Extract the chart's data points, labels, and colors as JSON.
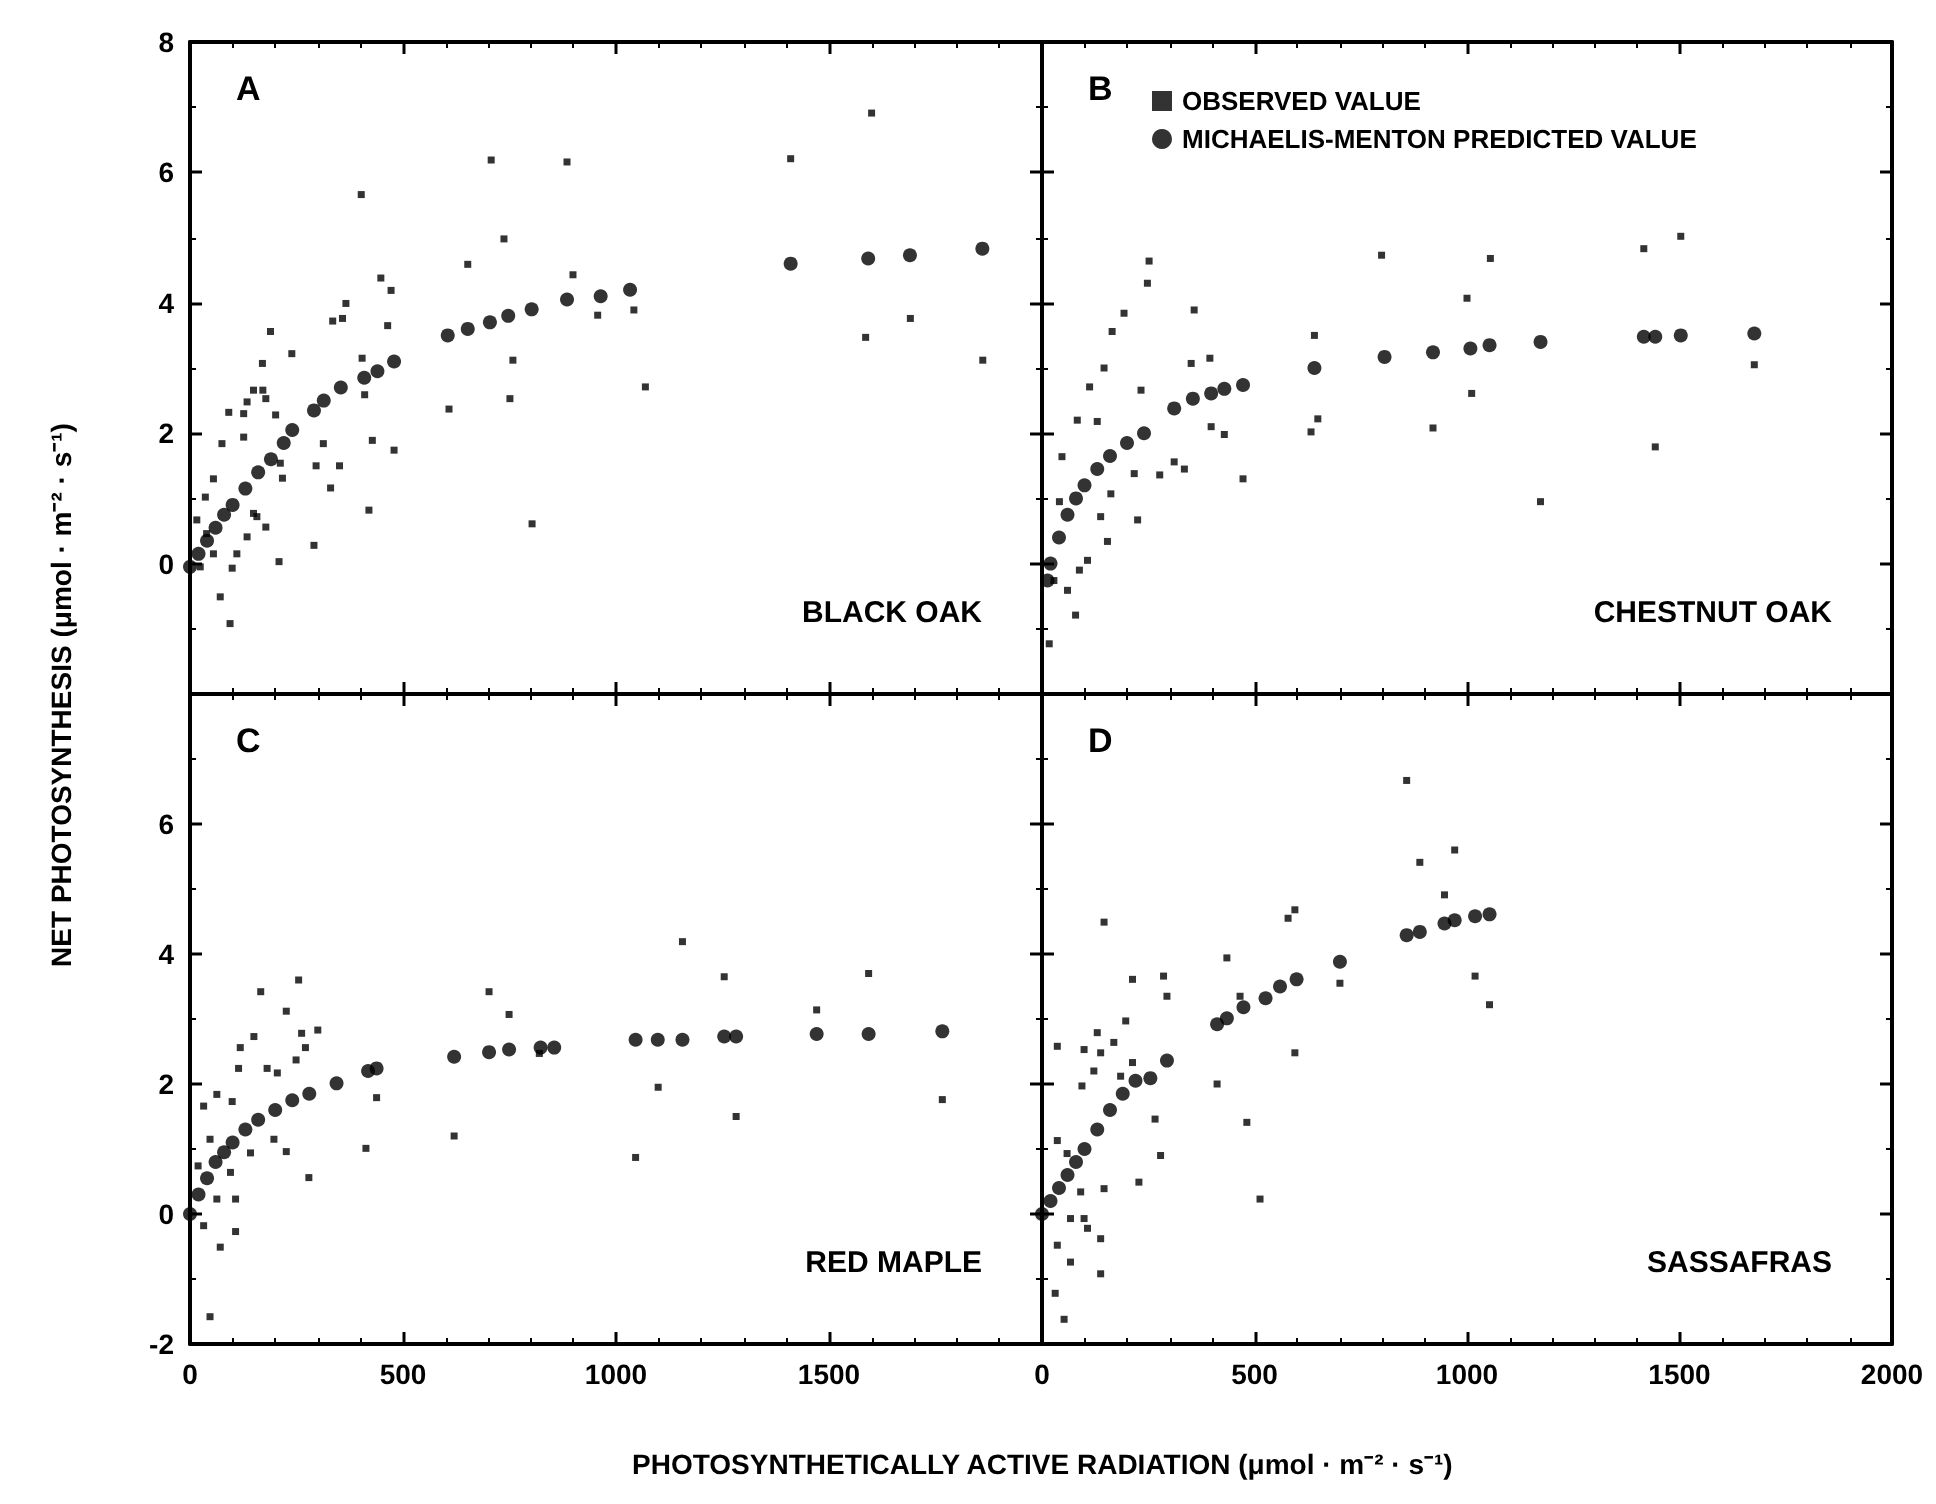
{
  "chart_data": [
    {
      "type": "scatter",
      "title": "A",
      "ylabel": "NET PHOTOSYNTHESIS (μmol · m⁻² · s⁻¹)",
      "annotations": [
        "BLACK OAK"
      ],
      "xlim": [
        0,
        2000
      ],
      "ylim": [
        -2,
        8
      ],
      "xticks": [
        0,
        500,
        1000,
        1500,
        2000
      ],
      "yticks": [
        {
          "value": -2,
          "label": null
        },
        0,
        2,
        4,
        6,
        8
      ],
      "tick_labels": "y",
      "legend": false,
      "grid": false,
      "series": [
        {
          "type": "scatter",
          "marker": "square",
          "color": "#000000",
          "x": [
            707,
            885,
            1410,
            1600,
            402,
            737,
            652,
            899,
            448,
            472,
            366,
            335,
            358,
            464,
            957,
            1042,
            1586,
            1691,
            1861,
            758,
            751,
            608,
            1069,
            404,
            410,
            428,
            479,
            313,
            296,
            351,
            330,
            420,
            291,
            803,
            189,
            239,
            170,
            149,
            171,
            178,
            134,
            91,
            126,
            201,
            126,
            75,
            212,
            217,
            55,
            36,
            149,
            178,
            134,
            209,
            99,
            71,
            94,
            24,
            55,
            110,
            39,
            16,
            157
          ],
          "values": [
            6.19,
            6.16,
            6.21,
            6.91,
            5.66,
            4.98,
            4.59,
            4.43,
            4.38,
            4.19,
            3.99,
            3.72,
            3.76,
            3.65,
            3.81,
            3.89,
            3.47,
            3.76,
            3.12,
            3.12,
            2.53,
            2.37,
            2.71,
            3.15,
            2.59,
            1.89,
            1.74,
            1.84,
            1.5,
            1.5,
            1.16,
            0.82,
            0.28,
            0.61,
            3.56,
            3.22,
            3.07,
            2.66,
            2.66,
            2.53,
            2.48,
            2.32,
            2.3,
            2.28,
            1.94,
            1.84,
            1.54,
            1.31,
            1.3,
            1.02,
            0.77,
            0.56,
            0.41,
            0.03,
            -0.07,
            -0.51,
            -0.92,
            -0.05,
            0.15,
            0.15,
            0.46,
            0.67,
            0.72
          ]
        },
        {
          "type": "scatter",
          "marker": "circle",
          "color": "#000000",
          "x": [
            0,
            20,
            40,
            60,
            80,
            100,
            130,
            160,
            190,
            220,
            240,
            291,
            314,
            354,
            409,
            440,
            479,
            605,
            652,
            704,
            747,
            802,
            885,
            964,
            1033,
            1410,
            1592,
            1690,
            1860
          ],
          "values": [
            -0.05,
            0.15,
            0.35,
            0.55,
            0.75,
            0.9,
            1.15,
            1.4,
            1.6,
            1.85,
            2.05,
            2.35,
            2.5,
            2.7,
            2.85,
            2.95,
            3.1,
            3.5,
            3.6,
            3.7,
            3.8,
            3.9,
            4.05,
            4.1,
            4.2,
            4.6,
            4.68,
            4.73,
            4.83
          ]
        }
      ]
    },
    {
      "type": "scatter",
      "title": "B",
      "annotations": [
        "CHESTNUT OAK"
      ],
      "xlim": [
        0,
        2000
      ],
      "ylim": [
        -2,
        8
      ],
      "xticks": [
        0,
        500,
        1000,
        1500,
        2000
      ],
      "yticks": [
        -2,
        0,
        2,
        4,
        6,
        8
      ],
      "tick_labels": false,
      "legend": "top left",
      "grid": false,
      "series": [
        {
          "type": "scatter",
          "name": "OBSERVED VALUE",
          "marker": "square",
          "color": "#000000",
          "x": [
            799,
            1055,
            1416,
            1503,
            252,
            248,
            358,
            193,
            165,
            146,
            112,
            233,
            351,
            395,
            641,
            1000,
            1011,
            649,
            633,
            920,
            1676,
            1443,
            1173,
            398,
            429,
            473,
            311,
            335,
            277,
            217,
            225,
            162,
            138,
            154,
            83,
            130,
            47,
            41,
            79,
            17,
            60,
            28,
            107,
            88
          ],
          "values": [
            4.73,
            4.68,
            4.83,
            5.02,
            4.64,
            4.3,
            3.89,
            3.84,
            3.56,
            3.0,
            2.71,
            2.66,
            3.07,
            3.15,
            3.5,
            4.07,
            2.61,
            2.22,
            2.02,
            2.08,
            3.05,
            1.79,
            0.95,
            2.1,
            1.98,
            1.3,
            1.56,
            1.45,
            1.36,
            1.38,
            0.67,
            1.07,
            0.72,
            0.34,
            2.2,
            2.18,
            1.64,
            0.95,
            -0.79,
            -1.23,
            -0.41,
            -0.26,
            0.05,
            -0.1
          ]
        },
        {
          "type": "scatter",
          "name": "MICHAELIS-MENTON PREDICTED VALUE",
          "marker": "circle",
          "color": "#000000",
          "x": [
            13,
            20,
            40,
            60,
            80,
            100,
            130,
            160,
            200,
            240,
            311,
            355,
            398,
            429,
            473,
            641,
            806,
            920,
            1008,
            1053,
            1173,
            1416,
            1443,
            1503,
            1676
          ],
          "values": [
            -0.26,
            0,
            0.4,
            0.75,
            1.0,
            1.2,
            1.45,
            1.65,
            1.85,
            2.0,
            2.38,
            2.53,
            2.61,
            2.68,
            2.74,
            3.0,
            3.17,
            3.24,
            3.3,
            3.35,
            3.4,
            3.48,
            3.48,
            3.5,
            3.53
          ]
        }
      ]
    },
    {
      "type": "scatter",
      "title": "C",
      "xlabel": "PHOTOSYNTHETICALLY ACTIVE RADIATION (μmol · m⁻² · s⁻¹)",
      "annotations": [
        "RED MAPLE"
      ],
      "xlim": [
        0,
        2000
      ],
      "ylim": [
        -2,
        8
      ],
      "xticks": [
        0,
        500,
        1000,
        1500
      ],
      "yticks": [
        -2,
        0,
        2,
        4,
        6,
        {
          "value": 8,
          "label": null
        }
      ],
      "legend": false,
      "grid": false,
      "series": [
        {
          "type": "scatter",
          "marker": "square",
          "color": "#000000",
          "x": [
            1156,
            1254,
            1593,
            1471,
            702,
            749,
            820,
            1099,
            1282,
            1766,
            1046,
            620,
            413,
            438,
            255,
            166,
            226,
            300,
            262,
            271,
            249,
            150,
            118,
            114,
            181,
            205,
            63,
            32,
            99,
            226,
            279,
            197,
            19,
            63,
            107,
            107,
            71,
            47,
            32,
            95,
            142,
            47
          ],
          "values": [
            4.19,
            3.65,
            3.7,
            3.14,
            3.42,
            3.07,
            2.47,
            1.95,
            1.5,
            1.76,
            0.87,
            1.2,
            1.01,
            1.79,
            3.6,
            3.42,
            3.12,
            2.83,
            2.78,
            2.56,
            2.37,
            2.73,
            2.56,
            2.24,
            2.24,
            2.17,
            1.84,
            1.66,
            1.73,
            0.96,
            0.56,
            1.15,
            0.74,
            0.23,
            0.23,
            -0.27,
            -0.51,
            -1.58,
            -0.18,
            0.64,
            0.94,
            1.15
          ]
        },
        {
          "type": "scatter",
          "marker": "circle",
          "color": "#000000",
          "x": [
            0,
            20,
            40,
            60,
            80,
            100,
            130,
            160,
            200,
            240,
            280,
            344,
            418,
            438,
            620,
            702,
            749,
            823,
            855,
            1046,
            1098,
            1156,
            1254,
            1282,
            1471,
            1593,
            1766
          ],
          "values": [
            0,
            0.3,
            0.55,
            0.8,
            0.95,
            1.1,
            1.3,
            1.45,
            1.6,
            1.75,
            1.85,
            2.01,
            2.2,
            2.24,
            2.42,
            2.49,
            2.53,
            2.56,
            2.56,
            2.68,
            2.68,
            2.68,
            2.73,
            2.73,
            2.77,
            2.77,
            2.81
          ]
        }
      ]
    },
    {
      "type": "scatter",
      "title": "D",
      "annotations": [
        "SASSAFRAS"
      ],
      "xlim": [
        0,
        2000
      ],
      "ylim": [
        -2,
        8
      ],
      "xticks": [
        0,
        500,
        1000,
        1500,
        2000
      ],
      "yticks": [
        -2,
        0,
        2,
        4,
        6,
        8
      ],
      "tick_labels": "x",
      "legend": false,
      "grid": false,
      "series": [
        {
          "type": "scatter",
          "marker": "square",
          "color": "#000000",
          "x": [
            858,
            971,
            889,
            947,
            1019,
            1053,
            701,
            595,
            579,
            435,
            466,
            595,
            412,
            482,
            513,
            146,
            213,
            286,
            294,
            197,
            213,
            266,
            279,
            228,
            130,
            99,
            138,
            169,
            94,
            122,
            185,
            36,
            36,
            59,
            146,
            99,
            107,
            138,
            138,
            36,
            67,
            31,
            52,
            91,
            67
          ],
          "values": [
            6.67,
            5.6,
            5.41,
            4.91,
            3.66,
            3.22,
            3.55,
            4.68,
            4.55,
            3.94,
            3.35,
            2.48,
            2.0,
            1.41,
            0.23,
            4.49,
            3.61,
            3.66,
            3.35,
            2.97,
            2.33,
            1.46,
            0.9,
            0.49,
            2.79,
            2.53,
            2.48,
            2.64,
            1.97,
            2.2,
            2.12,
            2.58,
            1.13,
            0.93,
            0.39,
            -0.07,
            -0.22,
            -0.38,
            -0.92,
            -0.48,
            -0.74,
            -1.22,
            -1.62,
            0.34,
            -0.07
          ]
        },
        {
          "type": "scatter",
          "marker": "circle",
          "color": "#000000",
          "x": [
            0,
            20,
            40,
            60,
            80,
            100,
            130,
            160,
            190,
            220,
            255,
            294,
            412,
            435,
            474,
            526,
            560,
            599,
            701,
            858,
            889,
            947,
            971,
            1019,
            1053
          ],
          "values": [
            0,
            0.2,
            0.4,
            0.6,
            0.8,
            1.0,
            1.3,
            1.6,
            1.85,
            2.05,
            2.09,
            2.36,
            2.92,
            3.01,
            3.18,
            3.32,
            3.5,
            3.61,
            3.88,
            4.29,
            4.34,
            4.47,
            4.52,
            4.58,
            4.61
          ]
        }
      ]
    }
  ]
}
